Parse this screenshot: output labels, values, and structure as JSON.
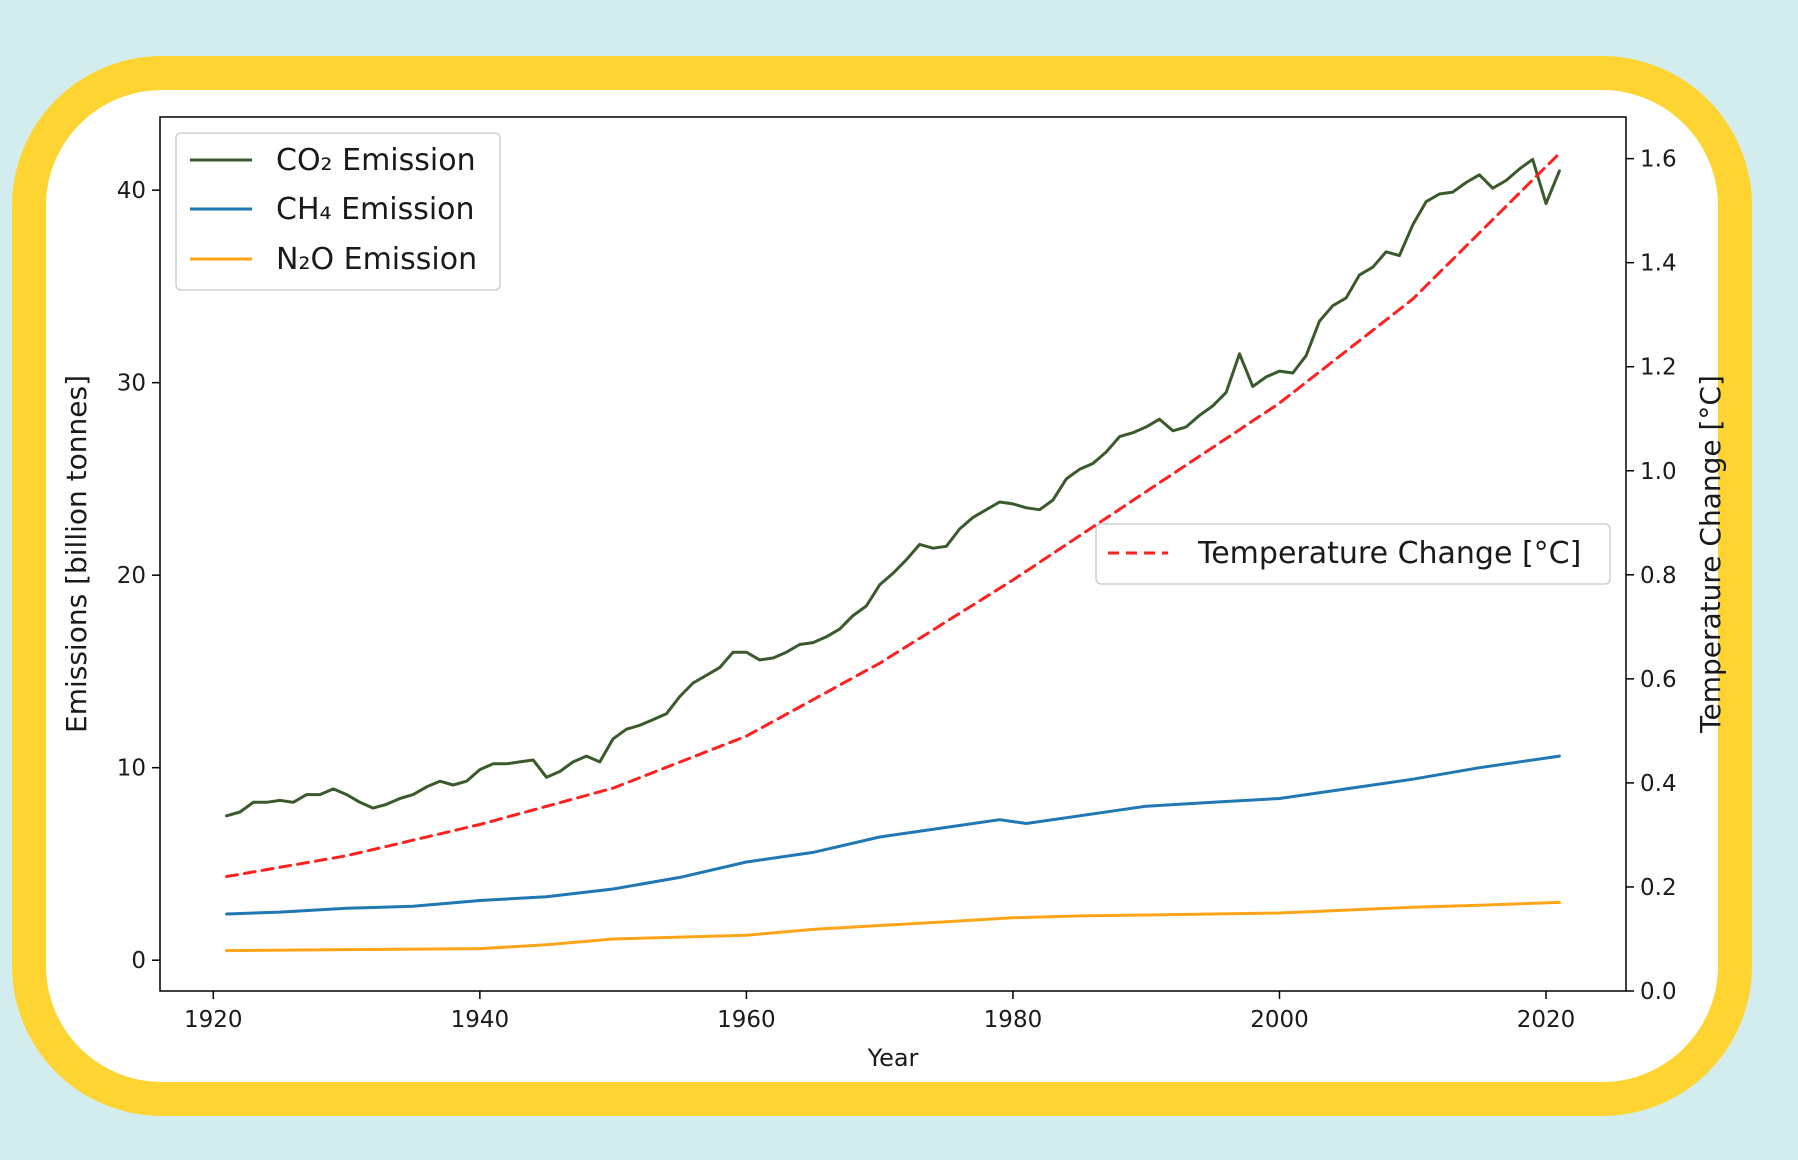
{
  "chart_data": {
    "type": "line",
    "xlabel": "Year",
    "ylabel_left": "Emissions [billion tonnes]",
    "ylabel_right": "Temperature Change [°C]",
    "xlim": [
      1916,
      2026
    ],
    "ylim_left": [
      -1.6,
      43.8
    ],
    "ylim_right": [
      0.0,
      1.68
    ],
    "xticks": [
      1920,
      1940,
      1960,
      1980,
      2000,
      2020
    ],
    "yticks_left": [
      0,
      10,
      20,
      30,
      40
    ],
    "yticks_right": [
      0.0,
      0.2,
      0.4,
      0.6,
      0.8,
      1.0,
      1.2,
      1.4,
      1.6
    ],
    "yticks_right_labels": [
      "0.0",
      "0.2",
      "0.4",
      "0.6",
      "0.8",
      "1.0",
      "1.2",
      "1.4",
      "1.6"
    ],
    "grid": false,
    "legend_left_placement": "upper-left",
    "legend_right_placement": "center-right",
    "series": [
      {
        "name": "CO₂ Emission",
        "axis": "left",
        "color": "#3a5a2c",
        "dash": "solid",
        "x": [
          1921,
          1922,
          1923,
          1924,
          1925,
          1926,
          1927,
          1928,
          1929,
          1930,
          1931,
          1932,
          1933,
          1934,
          1935,
          1936,
          1937,
          1938,
          1939,
          1940,
          1941,
          1942,
          1943,
          1944,
          1945,
          1946,
          1947,
          1948,
          1949,
          1950,
          1951,
          1952,
          1953,
          1954,
          1955,
          1956,
          1957,
          1958,
          1959,
          1960,
          1961,
          1962,
          1963,
          1964,
          1965,
          1966,
          1967,
          1968,
          1969,
          1970,
          1971,
          1972,
          1973,
          1974,
          1975,
          1976,
          1977,
          1978,
          1979,
          1980,
          1981,
          1982,
          1983,
          1984,
          1985,
          1986,
          1987,
          1988,
          1989,
          1990,
          1991,
          1992,
          1993,
          1994,
          1995,
          1996,
          1997,
          1998,
          1999,
          2000,
          2001,
          2002,
          2003,
          2004,
          2005,
          2006,
          2007,
          2008,
          2009,
          2010,
          2011,
          2012,
          2013,
          2014,
          2015,
          2016,
          2017,
          2018,
          2019,
          2020,
          2021
        ],
        "values": [
          7.5,
          7.7,
          8.2,
          8.2,
          8.3,
          8.2,
          8.6,
          8.6,
          8.9,
          8.6,
          8.2,
          7.9,
          8.1,
          8.4,
          8.6,
          9.0,
          9.3,
          9.1,
          9.3,
          9.9,
          10.2,
          10.2,
          10.3,
          10.4,
          9.5,
          9.8,
          10.3,
          10.6,
          10.3,
          11.5,
          12.0,
          12.2,
          12.5,
          12.8,
          13.7,
          14.4,
          14.8,
          15.2,
          16.0,
          16.0,
          15.6,
          15.7,
          16.0,
          16.4,
          16.5,
          16.8,
          17.2,
          17.9,
          18.4,
          19.5,
          20.1,
          20.8,
          21.6,
          21.4,
          21.5,
          22.4,
          23.0,
          23.4,
          23.8,
          23.7,
          23.5,
          23.4,
          23.9,
          25.0,
          25.5,
          25.8,
          26.4,
          27.2,
          27.4,
          27.7,
          28.1,
          27.5,
          27.7,
          28.3,
          28.8,
          29.5,
          31.5,
          29.8,
          30.3,
          30.6,
          30.5,
          31.4,
          33.2,
          34.0,
          34.4,
          35.6,
          36.0,
          36.8,
          36.6,
          38.2,
          39.4,
          39.8,
          39.9,
          40.4,
          40.8,
          40.1,
          40.5,
          41.1,
          41.6,
          39.3,
          41.0
        ]
      },
      {
        "name": "CH₄ Emission",
        "axis": "left",
        "color": "#1f77b4",
        "dash": "solid",
        "x": [
          1921,
          1925,
          1930,
          1935,
          1940,
          1945,
          1950,
          1955,
          1960,
          1965,
          1970,
          1975,
          1979,
          1981,
          1985,
          1990,
          1995,
          2000,
          2005,
          2010,
          2015,
          2021
        ],
        "values": [
          2.4,
          2.5,
          2.7,
          2.8,
          3.1,
          3.3,
          3.7,
          4.3,
          5.1,
          5.6,
          6.4,
          6.9,
          7.3,
          7.1,
          7.5,
          8.0,
          8.2,
          8.4,
          8.9,
          9.4,
          10.0,
          10.6
        ]
      },
      {
        "name": "N₂O Emission",
        "axis": "left",
        "color": "#ffa51a",
        "dash": "solid",
        "x": [
          1921,
          1930,
          1940,
          1945,
          1950,
          1955,
          1960,
          1965,
          1970,
          1975,
          1980,
          1985,
          1990,
          1995,
          2000,
          2005,
          2010,
          2015,
          2021
        ],
        "values": [
          0.5,
          0.55,
          0.6,
          0.8,
          1.1,
          1.2,
          1.3,
          1.6,
          1.8,
          2.0,
          2.2,
          2.3,
          2.35,
          2.4,
          2.45,
          2.6,
          2.75,
          2.85,
          3.0
        ]
      },
      {
        "name": "Temperature Change [°C]",
        "axis": "right",
        "color": "#ff2020",
        "dash": "dashed",
        "x": [
          1921,
          1930,
          1940,
          1950,
          1960,
          1970,
          1980,
          1990,
          2000,
          2010,
          2021
        ],
        "values": [
          0.22,
          0.26,
          0.32,
          0.39,
          0.49,
          0.63,
          0.79,
          0.96,
          1.13,
          1.33,
          1.61
        ]
      }
    ]
  }
}
